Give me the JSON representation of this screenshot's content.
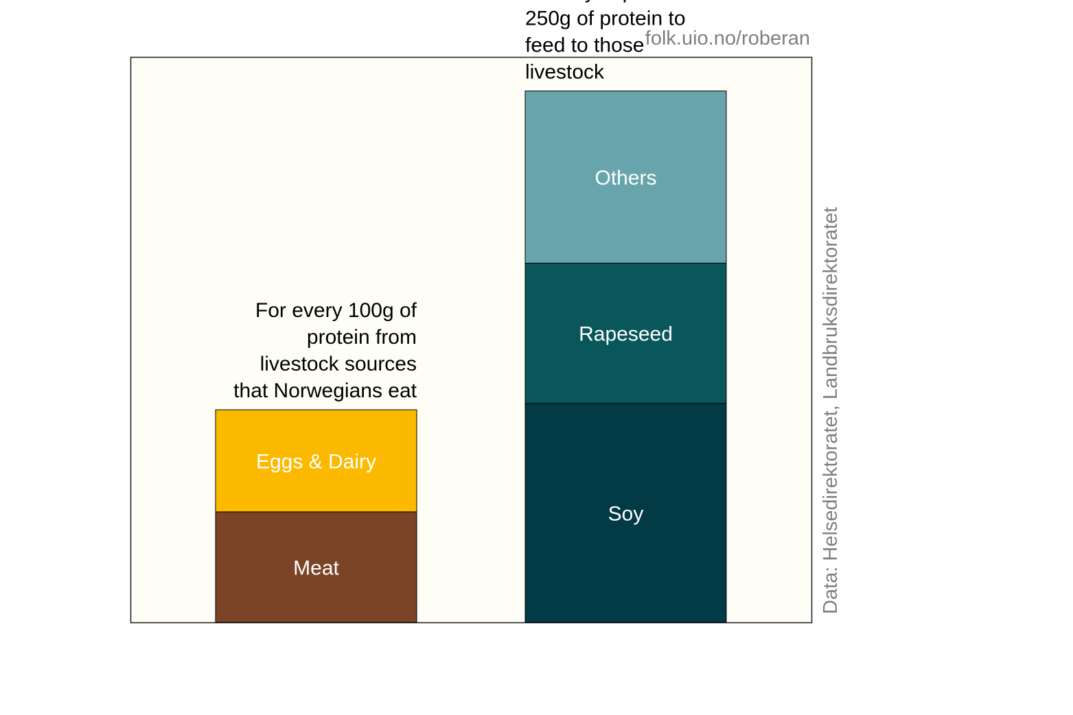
{
  "credit": "folk.uio.no/roberan",
  "source": "Data: Helsedirektoratet, Landbruksdirektoratet",
  "colors": {
    "panel_background": "#fefef6",
    "panel_border": "#1a1a1a",
    "meat": "#7b4426",
    "eggs_dairy": "#fbba00",
    "soy": "#023a46",
    "rapeseed": "#09575b",
    "others": "#67a4ab"
  },
  "chart_data": {
    "type": "bar",
    "stacked": true,
    "unit": "g of protein",
    "ylim": [
      0,
      266
    ],
    "grid": false,
    "legend": "none",
    "bars": [
      {
        "id": "consumed",
        "annotation": [
          "For every 100g of",
          "protein from",
          "livestock sources",
          "that Norwegians eat"
        ],
        "annotation_align": "right",
        "total": 100,
        "segments": [
          {
            "label": "Meat",
            "value": 52,
            "color_key": "meat"
          },
          {
            "label": "Eggs & Dairy",
            "value": 48,
            "color_key": "eggs_dairy"
          }
        ]
      },
      {
        "id": "imported",
        "annotation": [
          "Norway imports",
          "250g of protein to",
          "feed to those",
          "livestock"
        ],
        "annotation_align": "left",
        "total": 250,
        "segments": [
          {
            "label": "Soy",
            "value": 103,
            "color_key": "soy"
          },
          {
            "label": "Rapeseed",
            "value": 66,
            "color_key": "rapeseed"
          },
          {
            "label": "Others",
            "value": 81,
            "color_key": "others"
          }
        ]
      }
    ]
  }
}
